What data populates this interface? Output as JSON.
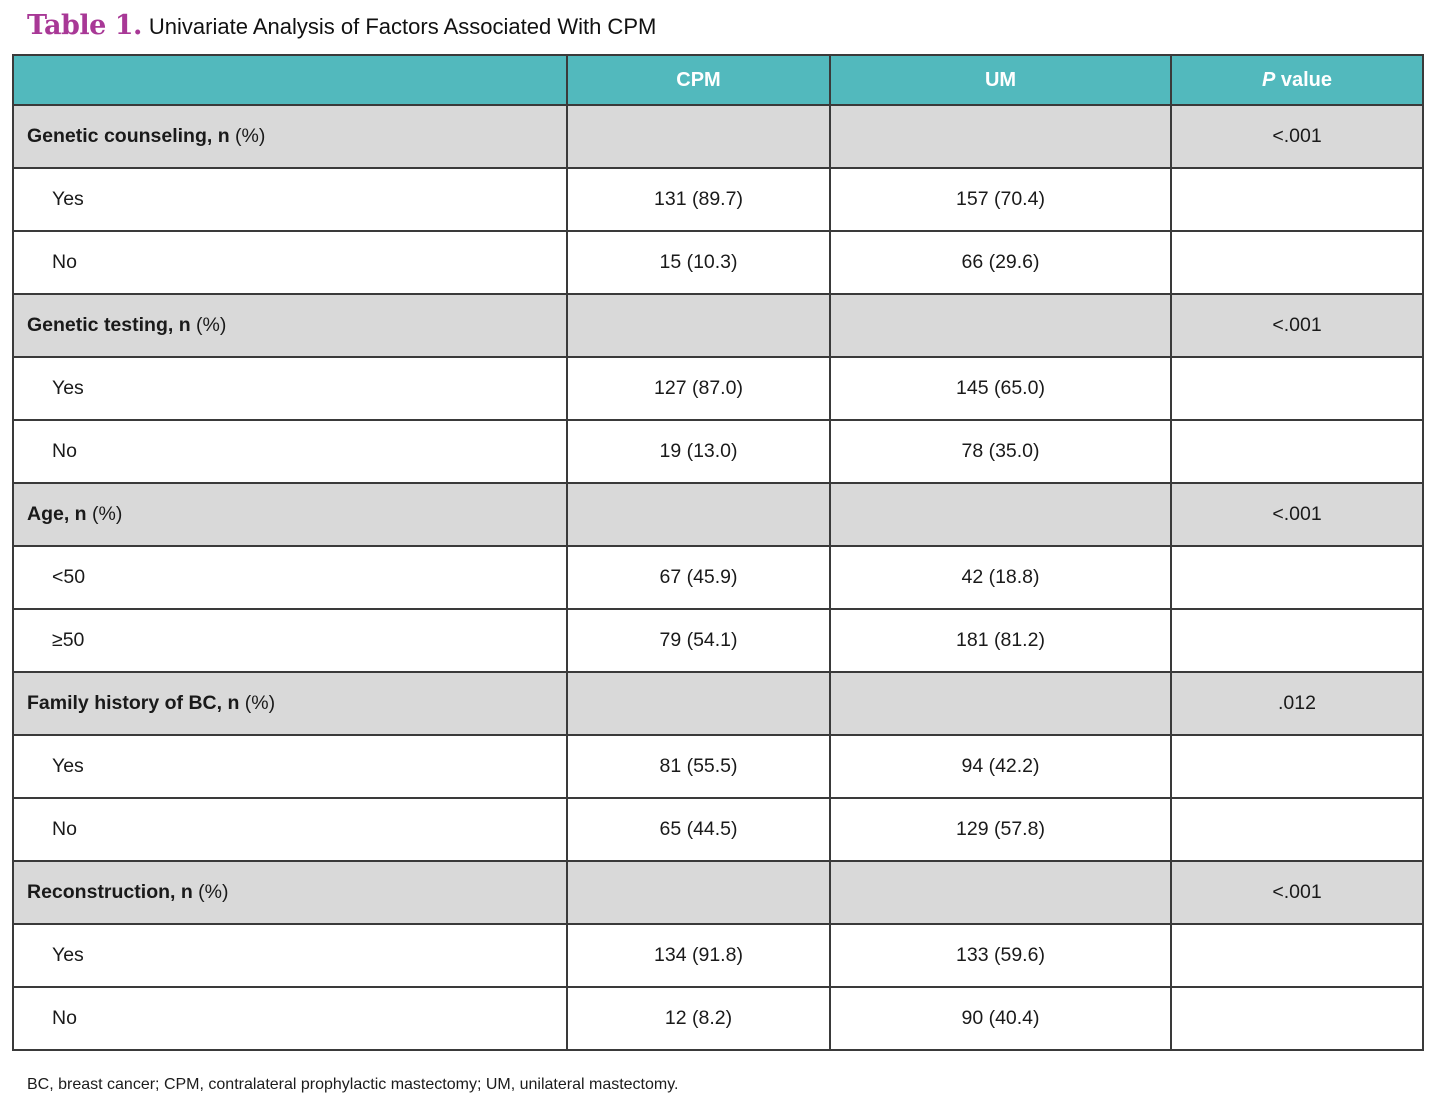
{
  "title": {
    "label": "Table 1.",
    "text": "Univariate Analysis of Factors Associated With CPM"
  },
  "colors": {
    "header_bg": "#52b9bd",
    "header_text": "#ffffff",
    "section_row_bg": "#d9d9d9",
    "border": "#3a3a3a",
    "title_accent": "#a83896"
  },
  "table": {
    "header": {
      "col0": "",
      "cpm": "CPM",
      "um": "UM",
      "p_italic": "P",
      "p_rest": " value"
    },
    "sections": [
      {
        "label": "Genetic counseling, n",
        "unit": "(%)",
        "p_value": "<.001",
        "rows": [
          {
            "label": "Yes",
            "cpm": "131 (89.7)",
            "um": "157 (70.4)"
          },
          {
            "label": "No",
            "cpm": "15 (10.3)",
            "um": "66 (29.6)"
          }
        ]
      },
      {
        "label": "Genetic testing, n",
        "unit": "(%)",
        "p_value": "<.001",
        "rows": [
          {
            "label": "Yes",
            "cpm": "127 (87.0)",
            "um": "145 (65.0)"
          },
          {
            "label": "No",
            "cpm": "19 (13.0)",
            "um": "78 (35.0)"
          }
        ]
      },
      {
        "label": "Age, n",
        "unit": "(%)",
        "p_value": "<.001",
        "rows": [
          {
            "label": "<50",
            "cpm": "67 (45.9)",
            "um": "42 (18.8)"
          },
          {
            "label": "≥50",
            "cpm": "79 (54.1)",
            "um": "181 (81.2)"
          }
        ]
      },
      {
        "label": "Family history of BC, n",
        "unit": "(%)",
        "p_value": ".012",
        "rows": [
          {
            "label": "Yes",
            "cpm": "81 (55.5)",
            "um": "94 (42.2)"
          },
          {
            "label": "No",
            "cpm": "65 (44.5)",
            "um": "129 (57.8)"
          }
        ]
      },
      {
        "label": "Reconstruction, n",
        "unit": "(%)",
        "p_value": "<.001",
        "rows": [
          {
            "label": "Yes",
            "cpm": "134 (91.8)",
            "um": "133 (59.6)"
          },
          {
            "label": "No",
            "cpm": "12 (8.2)",
            "um": "90 (40.4)"
          }
        ]
      }
    ]
  },
  "footnote": "BC, breast cancer; CPM, contralateral prophylactic mastectomy; UM, unilateral mastectomy."
}
